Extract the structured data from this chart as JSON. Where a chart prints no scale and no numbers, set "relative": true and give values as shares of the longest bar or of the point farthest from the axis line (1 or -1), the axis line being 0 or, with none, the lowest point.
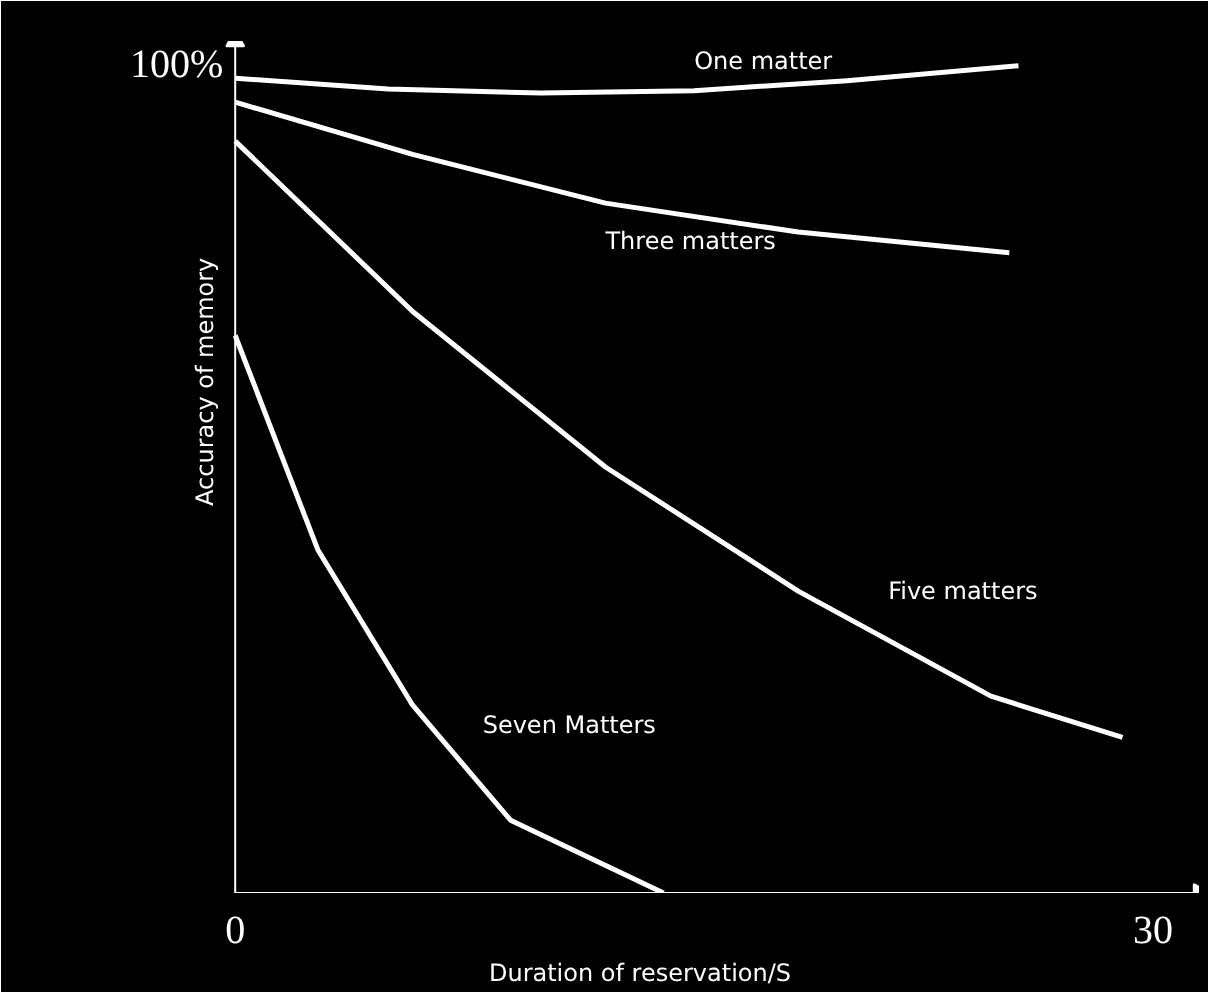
{
  "chart_data": {
    "type": "line",
    "xlabel": "Duration of reservation/S",
    "ylabel": "Accuracy of memory",
    "xlim": [
      0,
      31.5
    ],
    "xticks": [
      0,
      30
    ],
    "relative": true,
    "annotations": [
      "100%"
    ],
    "grid": false,
    "marker": "none",
    "line_style": "solid",
    "series": [
      {
        "name": "One matter",
        "color": "#ffffff",
        "x": [
          0,
          5,
          10,
          15,
          20,
          25.6
        ],
        "values": [
          0.985,
          0.972,
          0.967,
          0.97,
          0.982,
          1
        ]
      },
      {
        "name": "Three matters",
        "color": "#ffffff",
        "x": [
          0,
          5.8,
          12.1,
          18.4,
          25.3
        ],
        "values": [
          0.956,
          0.893,
          0.834,
          0.799,
          0.774
        ]
      },
      {
        "name": "Five matters",
        "color": "#ffffff",
        "x": [
          0,
          5.8,
          12.1,
          18.4,
          24.7,
          29
        ],
        "values": [
          0.909,
          0.703,
          0.515,
          0.365,
          0.238,
          0.188
        ]
      },
      {
        "name": "Seven Matters",
        "color": "#ffffff",
        "x": [
          0,
          2.7,
          5.8,
          9,
          14
        ],
        "values": [
          0.674,
          0.415,
          0.227,
          0.088,
          0
        ]
      }
    ]
  }
}
